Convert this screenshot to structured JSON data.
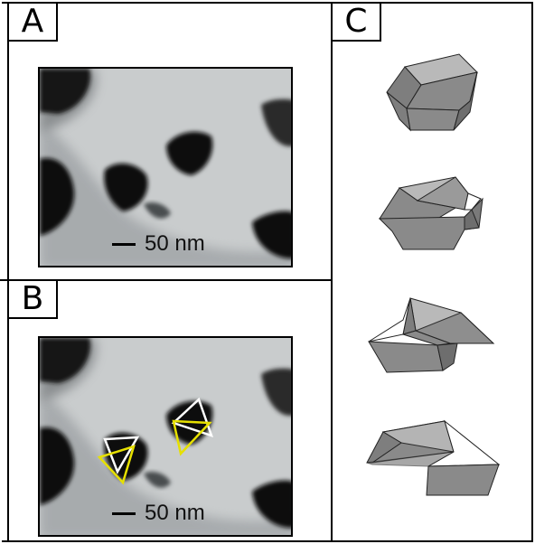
{
  "panels": {
    "a": {
      "label": "A"
    },
    "b": {
      "label": "B"
    },
    "c": {
      "label": "C"
    }
  },
  "scale_bar": {
    "text": "50 nm"
  },
  "colors": {
    "frame": "#000000",
    "tem_background": "#c6c9cb",
    "particle": "#111111",
    "overlay_yellow": "#e6e000",
    "overlay_white": "#ffffff",
    "crystal_face": "#8a8a8a",
    "crystal_top": "#b9b9b9"
  },
  "icons": [
    "scale-bar",
    "triangle-overlay",
    "crystal-diagram"
  ]
}
